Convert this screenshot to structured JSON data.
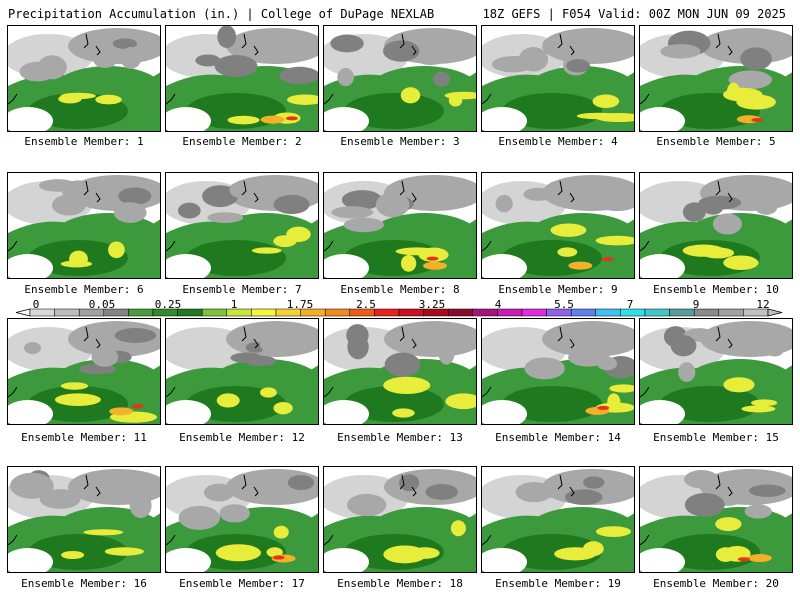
{
  "header": {
    "left": "Precipitation Accumulation (in.) | College of DuPage NEXLAB",
    "right": "18Z GEFS | F054 Valid: 00Z MON JUN 09 2025"
  },
  "members": [
    "Ensemble Member: 1",
    "Ensemble Member: 2",
    "Ensemble Member: 3",
    "Ensemble Member: 4",
    "Ensemble Member: 5",
    "Ensemble Member: 6",
    "Ensemble Member: 7",
    "Ensemble Member: 8",
    "Ensemble Member: 9",
    "Ensemble Member: 10",
    "Ensemble Member: 11",
    "Ensemble Member: 12",
    "Ensemble Member: 13",
    "Ensemble Member: 14",
    "Ensemble Member: 15",
    "Ensemble Member: 16",
    "Ensemble Member: 17",
    "Ensemble Member: 18",
    "Ensemble Member: 19",
    "Ensemble Member: 20"
  ],
  "colorbar": {
    "labels": [
      "0",
      "0.05",
      "0.25",
      "1",
      "1.75",
      "2.5",
      "3.25",
      "4",
      "5.5",
      "7",
      "9",
      "12"
    ],
    "colors": [
      "#d8d8d8",
      "#bdbdbd",
      "#a0a0a0",
      "#848484",
      "#4a9a3e",
      "#2e8b2e",
      "#1f7a1f",
      "#7cc43a",
      "#c8e63c",
      "#f6f63c",
      "#f5d233",
      "#f5ae28",
      "#f08a1e",
      "#ee5c18",
      "#e8221a",
      "#cc1020",
      "#a80c1c",
      "#8a0a30",
      "#a8127a",
      "#c81cb4",
      "#e02ae0",
      "#9060f0",
      "#6080f0",
      "#40c0f0",
      "#30e0e8",
      "#40c8c8",
      "#5a9c9c",
      "#8a8a8a",
      "#a0a0a0",
      "#c0c0c0"
    ]
  },
  "fill_colors": {
    "background": "#ffffff",
    "light_gray": "#d4d4d4",
    "gray": "#a8a8a8",
    "dark_gray": "#808080",
    "green": "#3c9a3c",
    "dark_green": "#1f7a1f",
    "yellow": "#e8ec3a",
    "orange": "#f5b02a",
    "red": "#e8321a"
  }
}
